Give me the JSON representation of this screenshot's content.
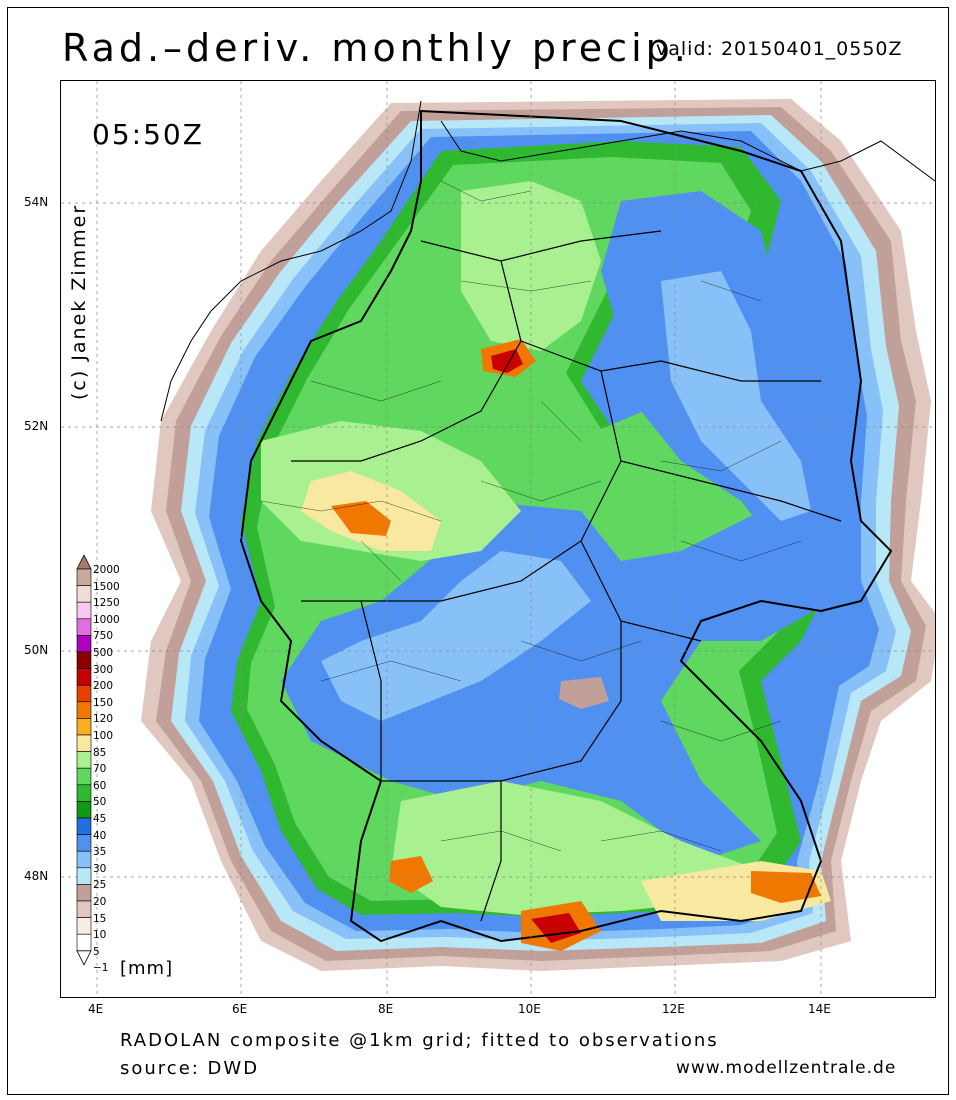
{
  "title": "Rad.–deriv. monthly precip.",
  "valid": "valid: 20150401_0550Z",
  "time_label": "05:50Z",
  "copyright": "(c) Janek Zimmer",
  "axes": {
    "lat_ticks": [
      "54N",
      "52N",
      "50N",
      "48N"
    ],
    "lon_ticks": [
      "4E",
      "6E",
      "8E",
      "10E",
      "12E",
      "14E"
    ]
  },
  "legend": {
    "unit": "[mm]",
    "levels": [
      "2000",
      "1500",
      "1250",
      "1000",
      "750",
      "500",
      "300",
      "200",
      "150",
      "120",
      "100",
      "85",
      "70",
      "60",
      "50",
      "45",
      "40",
      "35",
      "30",
      "25",
      "20",
      "15",
      "10",
      "5",
      "−1"
    ],
    "colors": [
      "#a87a6c",
      "#c8a89a",
      "#f0dcd6",
      "#f8c8f0",
      "#e070e0",
      "#b000c0",
      "#8a0000",
      "#c80000",
      "#e84000",
      "#f07800",
      "#f8b020",
      "#f8e8a0",
      "#a8f090",
      "#60d860",
      "#30b830",
      "#129812",
      "#2070e0",
      "#5090f0",
      "#88c0f8",
      "#b8e8f8",
      "#c0a098",
      "#e0c8c0",
      "#f8ece6",
      "#ffffff"
    ]
  },
  "footer": {
    "line1": "RADOLAN composite @1km grid; fitted to observations",
    "line2": "source: DWD",
    "website": "www.modellzentrale.de"
  },
  "map_colors": {
    "background": "#ffffff",
    "light_green": "#a8f090",
    "green": "#60d860",
    "dark_green": "#30b830",
    "blue": "#5090f0",
    "light_blue": "#88c0f8",
    "pale_blue": "#b8e8f8",
    "brown": "#c0a098",
    "pale_brown": "#e0c8c0",
    "orange": "#f07800",
    "red": "#c80000",
    "yellow": "#f8e8a0"
  }
}
